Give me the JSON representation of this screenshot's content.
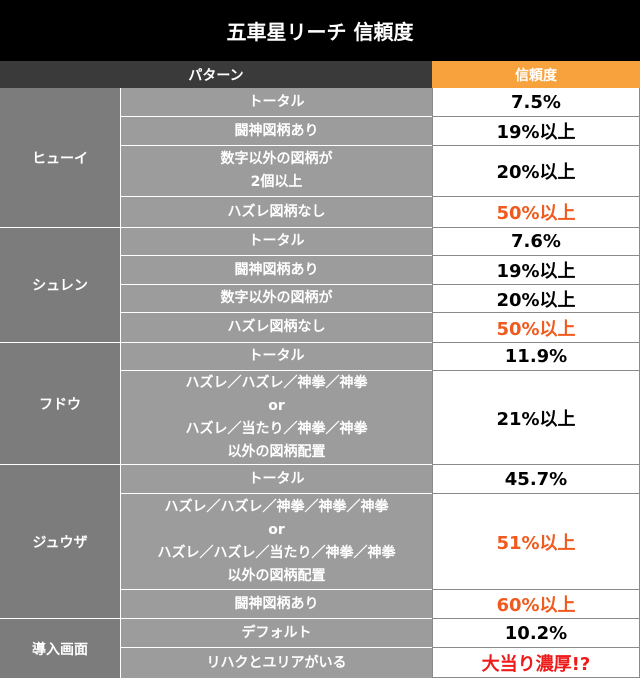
{
  "title": "五車星リーチ 信頼度",
  "header": {
    "pattern": "パターン",
    "reliability": "信頼度"
  },
  "groups": [
    {
      "name": "ヒューイ",
      "rows": [
        {
          "cond": "トータル",
          "val": "7.5%",
          "emph": ""
        },
        {
          "cond": "闘神図柄あり",
          "val": "19%以上",
          "emph": ""
        },
        {
          "cond": "数字以外の図柄が\n2個以上",
          "val": "20%以上",
          "emph": ""
        },
        {
          "cond": "ハズレ図柄なし",
          "val": "50%以上",
          "emph": "orange"
        }
      ]
    },
    {
      "name": "シュレン",
      "rows": [
        {
          "cond": "トータル",
          "val": "7.6%",
          "emph": ""
        },
        {
          "cond": "闘神図柄あり",
          "val": "19%以上",
          "emph": ""
        },
        {
          "cond": "数字以外の図柄が",
          "val": "20%以上",
          "emph": ""
        },
        {
          "cond": "ハズレ図柄なし",
          "val": "50%以上",
          "emph": "orange"
        }
      ]
    },
    {
      "name": "フドウ",
      "rows": [
        {
          "cond": "トータル",
          "val": "11.9%",
          "emph": ""
        },
        {
          "cond": "ハズレ／ハズレ／神拳／神拳\nor\nハズレ／当たり／神拳／神拳\n以外の図柄配置",
          "val": "21%以上",
          "emph": ""
        }
      ]
    },
    {
      "name": "ジュウザ",
      "rows": [
        {
          "cond": "トータル",
          "val": "45.7%",
          "emph": ""
        },
        {
          "cond": "ハズレ／ハズレ／神拳／神拳／神拳\nor\nハズレ／ハズレ／当たり／神拳／神拳\n以外の図柄配置",
          "val": "51%以上",
          "emph": "orange"
        },
        {
          "cond": "闘神図柄あり",
          "val": "60%以上",
          "emph": "orange"
        }
      ]
    },
    {
      "name": "導入画面",
      "rows": [
        {
          "cond": "デフォルト",
          "val": "10.2%",
          "emph": ""
        },
        {
          "cond": "リハクとユリアがいる",
          "val": "大当り濃厚!?",
          "emph": "red"
        }
      ]
    }
  ]
}
